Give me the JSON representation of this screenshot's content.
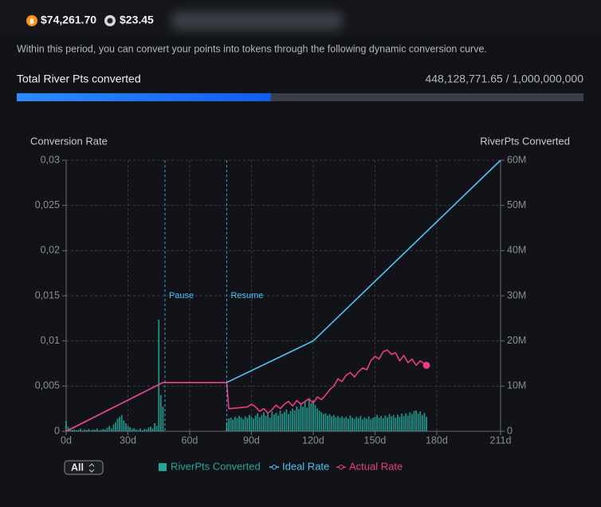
{
  "header": {
    "btc_price": "$74,261.70",
    "token_price": "$23.45"
  },
  "description": "Within this period, you can convert your points into tokens through the following dynamic conversion curve.",
  "progress": {
    "label": "Total River Pts converted",
    "text": "448,128,771.65 / 1,000,000,000",
    "value": 448128771.65,
    "max": 1000000000
  },
  "range_selector": "All",
  "chart_data": {
    "type": "line",
    "y_axis_label": "Conversion Rate",
    "y2_axis_label": "RiverPts Converted",
    "xlim": [
      0,
      211
    ],
    "xticks": [
      {
        "value": 0,
        "label": "0d"
      },
      {
        "value": 30,
        "label": "30d"
      },
      {
        "value": 60,
        "label": "60d"
      },
      {
        "value": 90,
        "label": "90d"
      },
      {
        "value": 120,
        "label": "120d"
      },
      {
        "value": 150,
        "label": "150d"
      },
      {
        "value": 180,
        "label": "180d"
      },
      {
        "value": 211,
        "label": "211d"
      }
    ],
    "ylim": [
      0,
      0.03
    ],
    "yticks": [
      0,
      {
        "value": 0.005,
        "label": "0,005"
      },
      {
        "value": 0.01,
        "label": "0,01"
      },
      {
        "value": 0.015,
        "label": "0,015"
      },
      {
        "value": 0.02,
        "label": "0,02"
      },
      {
        "value": 0.025,
        "label": "0,025"
      },
      {
        "value": 0.03,
        "label": "0,03"
      }
    ],
    "y2lim": [
      0,
      60000000
    ],
    "y2ticks": [
      0,
      {
        "value": 10000000,
        "label": "10M"
      },
      {
        "value": 20000000,
        "label": "20M"
      },
      {
        "value": 30000000,
        "label": "30M"
      },
      {
        "value": 40000000,
        "label": "40M"
      },
      {
        "value": 50000000,
        "label": "50M"
      },
      {
        "value": 60000000,
        "label": "60M"
      }
    ],
    "grid": true,
    "annotations": [
      {
        "x": 48,
        "text": "Pause"
      },
      {
        "x": 78,
        "text": "Resume"
      }
    ],
    "series": [
      {
        "name": "RiverPts Converted",
        "type": "bar",
        "axis": "y2",
        "color": "#26a69a",
        "x": [
          0,
          1,
          2,
          3,
          4,
          5,
          6,
          7,
          8,
          9,
          10,
          11,
          12,
          13,
          14,
          15,
          16,
          17,
          18,
          19,
          20,
          21,
          22,
          23,
          24,
          25,
          26,
          27,
          28,
          29,
          30,
          31,
          32,
          33,
          34,
          35,
          36,
          37,
          38,
          39,
          40,
          41,
          42,
          43,
          44,
          45,
          46,
          47,
          48,
          49,
          50,
          51,
          52,
          53,
          54,
          55,
          56,
          57,
          58,
          59,
          60,
          61,
          62,
          63,
          64,
          65,
          66,
          67,
          68,
          69,
          70,
          71,
          72,
          73,
          74,
          75,
          76,
          77,
          78,
          79,
          80,
          81,
          82,
          83,
          84,
          85,
          86,
          87,
          88,
          89,
          90,
          91,
          92,
          93,
          94,
          95,
          96,
          97,
          98,
          99,
          100,
          101,
          102,
          103,
          104,
          105,
          106,
          107,
          108,
          109,
          110,
          111,
          112,
          113,
          114,
          115,
          116,
          117,
          118,
          119,
          120,
          121,
          122,
          123,
          124,
          125,
          126,
          127,
          128,
          129,
          130,
          131,
          132,
          133,
          134,
          135,
          136,
          137,
          138,
          139,
          140,
          141,
          142,
          143,
          144,
          145,
          146,
          147,
          148,
          149,
          150,
          151,
          152,
          153,
          154,
          155,
          156,
          157,
          158,
          159,
          160,
          161,
          162,
          163,
          164,
          165,
          166,
          167,
          168,
          169,
          170,
          171,
          172,
          173,
          174,
          175
        ],
        "values": [
          2200000,
          1000000,
          500000,
          300000,
          400000,
          200000,
          300000,
          600000,
          200000,
          400000,
          300000,
          500000,
          200000,
          400000,
          300000,
          600000,
          200000,
          300000,
          500000,
          400000,
          800000,
          1200000,
          600000,
          1500000,
          2000000,
          2800000,
          3200000,
          3600000,
          2400000,
          1800000,
          1200000,
          900000,
          500000,
          700000,
          400000,
          300000,
          600000,
          200000,
          500000,
          400000,
          800000,
          1000000,
          600000,
          1800000,
          1200000,
          24700000,
          8000000,
          5500000,
          0,
          0,
          0,
          0,
          0,
          0,
          0,
          0,
          0,
          0,
          0,
          0,
          0,
          0,
          0,
          0,
          0,
          0,
          0,
          0,
          0,
          0,
          0,
          0,
          0,
          0,
          0,
          0,
          0,
          0,
          2000000,
          2800000,
          3000000,
          2600000,
          3200000,
          2900000,
          3400000,
          3100000,
          2700000,
          3300000,
          3000000,
          3600000,
          3200000,
          2800000,
          3500000,
          4000000,
          3100000,
          3600000,
          4200000,
          3400000,
          3900000,
          3000000,
          4400000,
          3700000,
          4100000,
          3500000,
          4600000,
          3900000,
          4300000,
          4800000,
          3800000,
          4500000,
          5000000,
          4600000,
          5500000,
          4900000,
          6000000,
          5400000,
          6600000,
          5200000,
          7200000,
          6200000,
          6800000,
          5800000,
          5000000,
          4600000,
          4200000,
          3800000,
          4000000,
          3500000,
          3800000,
          3300000,
          3600000,
          3100000,
          3400000,
          3000000,
          3300000,
          2900000,
          3200000,
          2800000,
          3500000,
          3000000,
          2700000,
          3200000,
          2900000,
          3400000,
          2600000,
          3100000,
          2800000,
          3300000,
          2700000,
          3000000,
          3200000,
          3600000,
          3000000,
          3400000,
          2900000,
          3500000,
          3100000,
          3800000,
          3300000,
          3600000,
          3000000,
          3700000,
          3200000,
          3900000,
          3400000,
          4000000,
          3500000,
          4200000,
          3800000,
          4500000,
          4600000,
          3900000,
          4400000,
          3600000,
          4100000,
          3200000
        ]
      },
      {
        "name": "Ideal Rate",
        "type": "line",
        "color": "#4fc3f7",
        "x": [
          0,
          47,
          78,
          120,
          211
        ],
        "values": [
          0,
          0.0054,
          0.0054,
          0.01,
          0.03
        ]
      },
      {
        "name": "Actual Rate",
        "type": "line",
        "color": "#ec3b83",
        "x": [
          0,
          47,
          78,
          79,
          84,
          88,
          90,
          92,
          94,
          96,
          98,
          100,
          102,
          104,
          106,
          108,
          110,
          112,
          114,
          116,
          118,
          120,
          122,
          124,
          126,
          128,
          130,
          132,
          134,
          136,
          138,
          140,
          142,
          144,
          146,
          148,
          150,
          152,
          154,
          156,
          158,
          160,
          162,
          164,
          166,
          168,
          170,
          172,
          175
        ],
        "values": [
          0,
          0.0054,
          0.0054,
          0.0025,
          0.0026,
          0.0027,
          0.003,
          0.0027,
          0.0022,
          0.0025,
          0.002,
          0.0024,
          0.0029,
          0.0025,
          0.003,
          0.0033,
          0.0028,
          0.0034,
          0.003,
          0.0033,
          0.0036,
          0.0031,
          0.0038,
          0.0035,
          0.004,
          0.0046,
          0.005,
          0.0058,
          0.0055,
          0.0062,
          0.0065,
          0.006,
          0.0066,
          0.007,
          0.0068,
          0.0078,
          0.0083,
          0.008,
          0.0088,
          0.009,
          0.0085,
          0.0087,
          0.0078,
          0.0084,
          0.0076,
          0.008,
          0.0073,
          0.0078,
          0.0073
        ]
      }
    ]
  }
}
